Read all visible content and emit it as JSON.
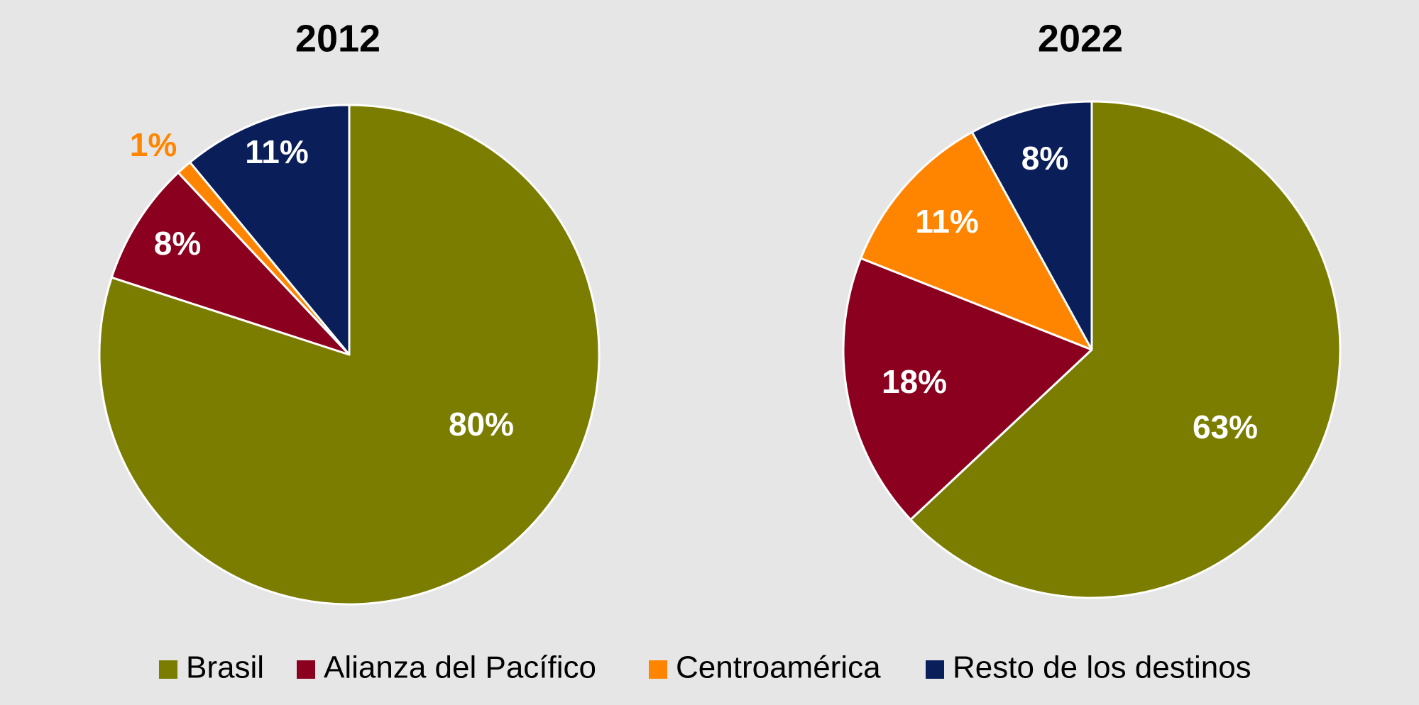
{
  "chart_data": [
    {
      "type": "pie",
      "title": "2012",
      "categories": [
        "Brasil",
        "Alianza del Pacífico",
        "Centroamérica",
        "Resto de los destinos"
      ],
      "values": [
        80,
        8,
        1,
        11
      ],
      "data_labels": [
        "80%",
        "8%",
        "1%",
        "11%"
      ],
      "start_angle_deg": 0,
      "direction": "clockwise",
      "legend_position": "bottom"
    },
    {
      "type": "pie",
      "title": "2022",
      "categories": [
        "Brasil",
        "Alianza del Pacífico",
        "Centroamérica",
        "Resto de los destinos"
      ],
      "values": [
        63,
        18,
        11,
        8
      ],
      "data_labels": [
        "63%",
        "18%",
        "11%",
        "8%"
      ],
      "start_angle_deg": 0,
      "direction": "clockwise",
      "legend_position": "bottom"
    }
  ],
  "legend": [
    {
      "label": "Brasil",
      "color": "#7a7d00"
    },
    {
      "label": "Alianza del Pacífico",
      "color": "#8b001e"
    },
    {
      "label": "Centroamérica",
      "color": "#ff8500"
    },
    {
      "label": "Resto de los destinos",
      "color": "#0a1e5a"
    }
  ],
  "colors": {
    "background": "#e6e6e6",
    "slice_border": "#ffffff",
    "label_text": "#ffffff"
  }
}
